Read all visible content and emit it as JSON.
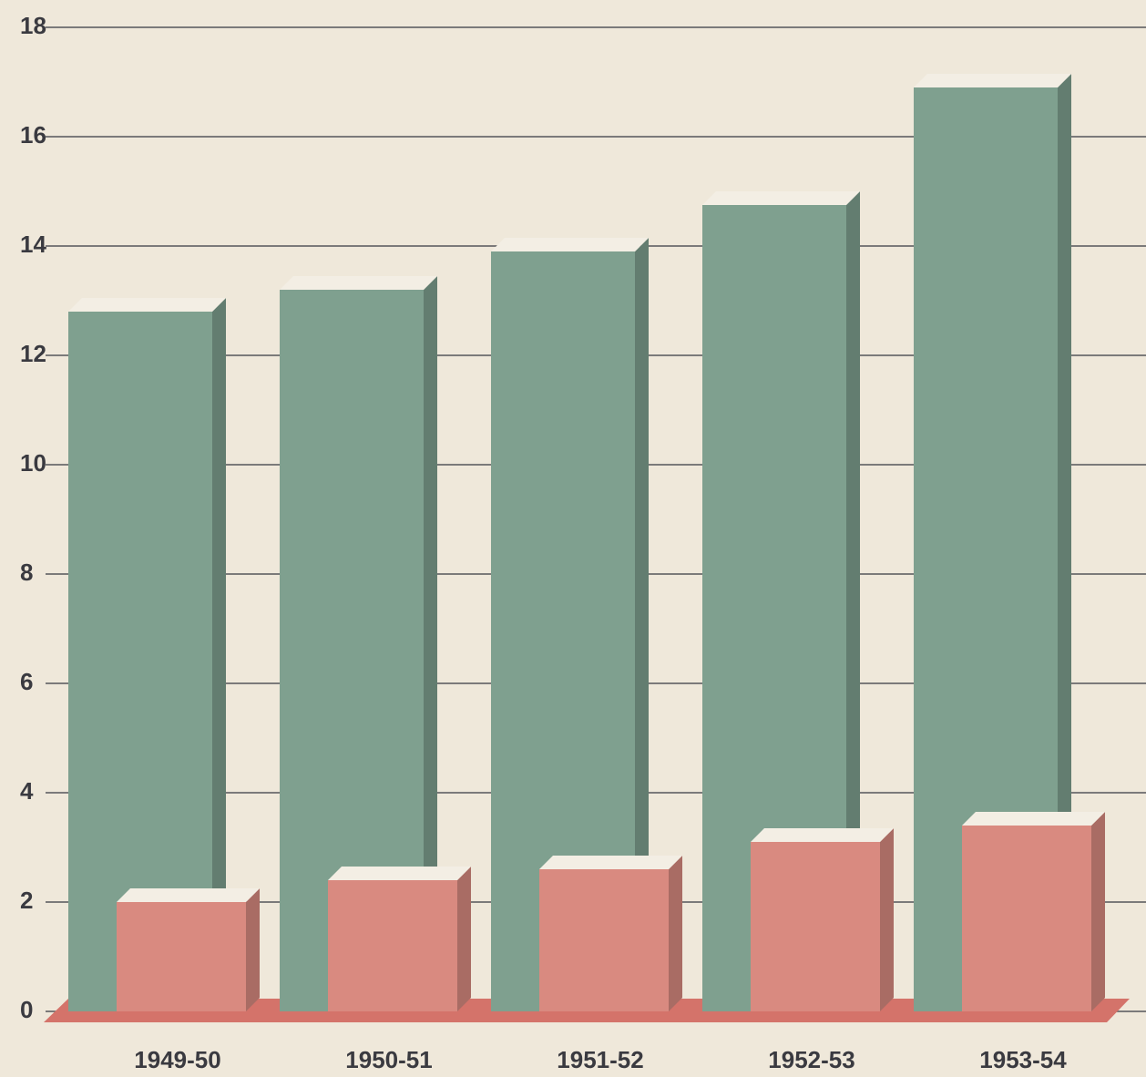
{
  "chart_data": {
    "type": "bar3d",
    "categories": [
      "1949-50",
      "1950-51",
      "1951-52",
      "1952-53",
      "1953-54"
    ],
    "series": [
      {
        "color": "#7fa08f",
        "values": [
          12.8,
          13.2,
          13.9,
          14.75,
          16.9
        ]
      },
      {
        "color": "#d98a80",
        "values": [
          2.0,
          2.4,
          2.6,
          3.1,
          3.4
        ]
      }
    ],
    "ylim": [
      0,
      18
    ],
    "yticks": [
      0,
      2,
      4,
      6,
      8,
      10,
      12,
      14,
      16,
      18
    ],
    "grid": true
  }
}
